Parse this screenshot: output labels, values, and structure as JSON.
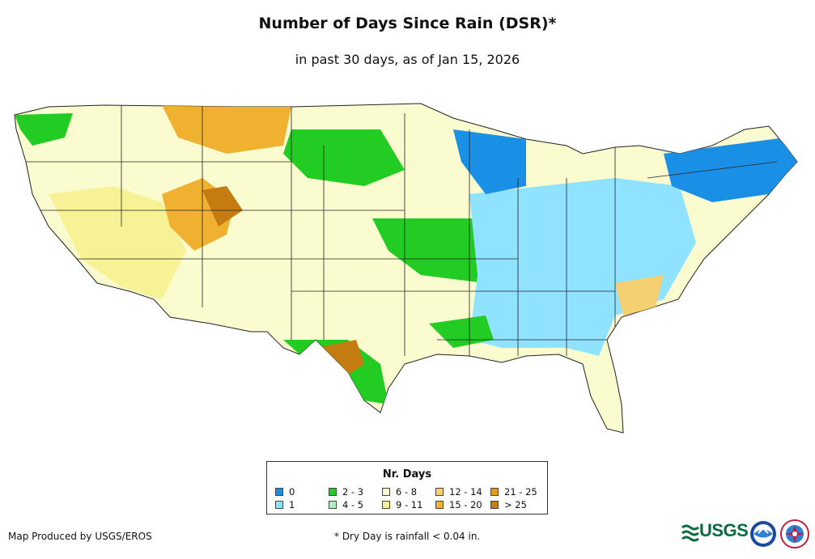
{
  "title": "Number of Days Since Rain (DSR)*",
  "subtitle": "in past 30 days, as of Jan 15, 2026",
  "legend": {
    "title": "Nr. Days",
    "items": [
      {
        "label": "0",
        "color": "#1a8fe6"
      },
      {
        "label": "1",
        "color": "#8fe3ff"
      },
      {
        "label": "2 - 3",
        "color": "#22cc22"
      },
      {
        "label": "4 - 5",
        "color": "#b0f0c0"
      },
      {
        "label": "6 - 8",
        "color": "#fbfbd0"
      },
      {
        "label": "9 - 11",
        "color": "#f7f296"
      },
      {
        "label": "12 - 14",
        "color": "#f4d070"
      },
      {
        "label": "15 - 20",
        "color": "#f0b030"
      },
      {
        "label": "21 - 25",
        "color": "#e69a10"
      },
      {
        "label": "> 25",
        "color": "#c47c10"
      }
    ]
  },
  "credit": "Map Produced by USGS/EROS",
  "footnote": "* Dry Day is rainfall < 0.04 in.",
  "logos": {
    "usgs_text": "USGS",
    "usgs_icon": "usgs-wave-logo",
    "noaa_icon": "noaa-seal",
    "nws_icon": "nws-seal"
  }
}
